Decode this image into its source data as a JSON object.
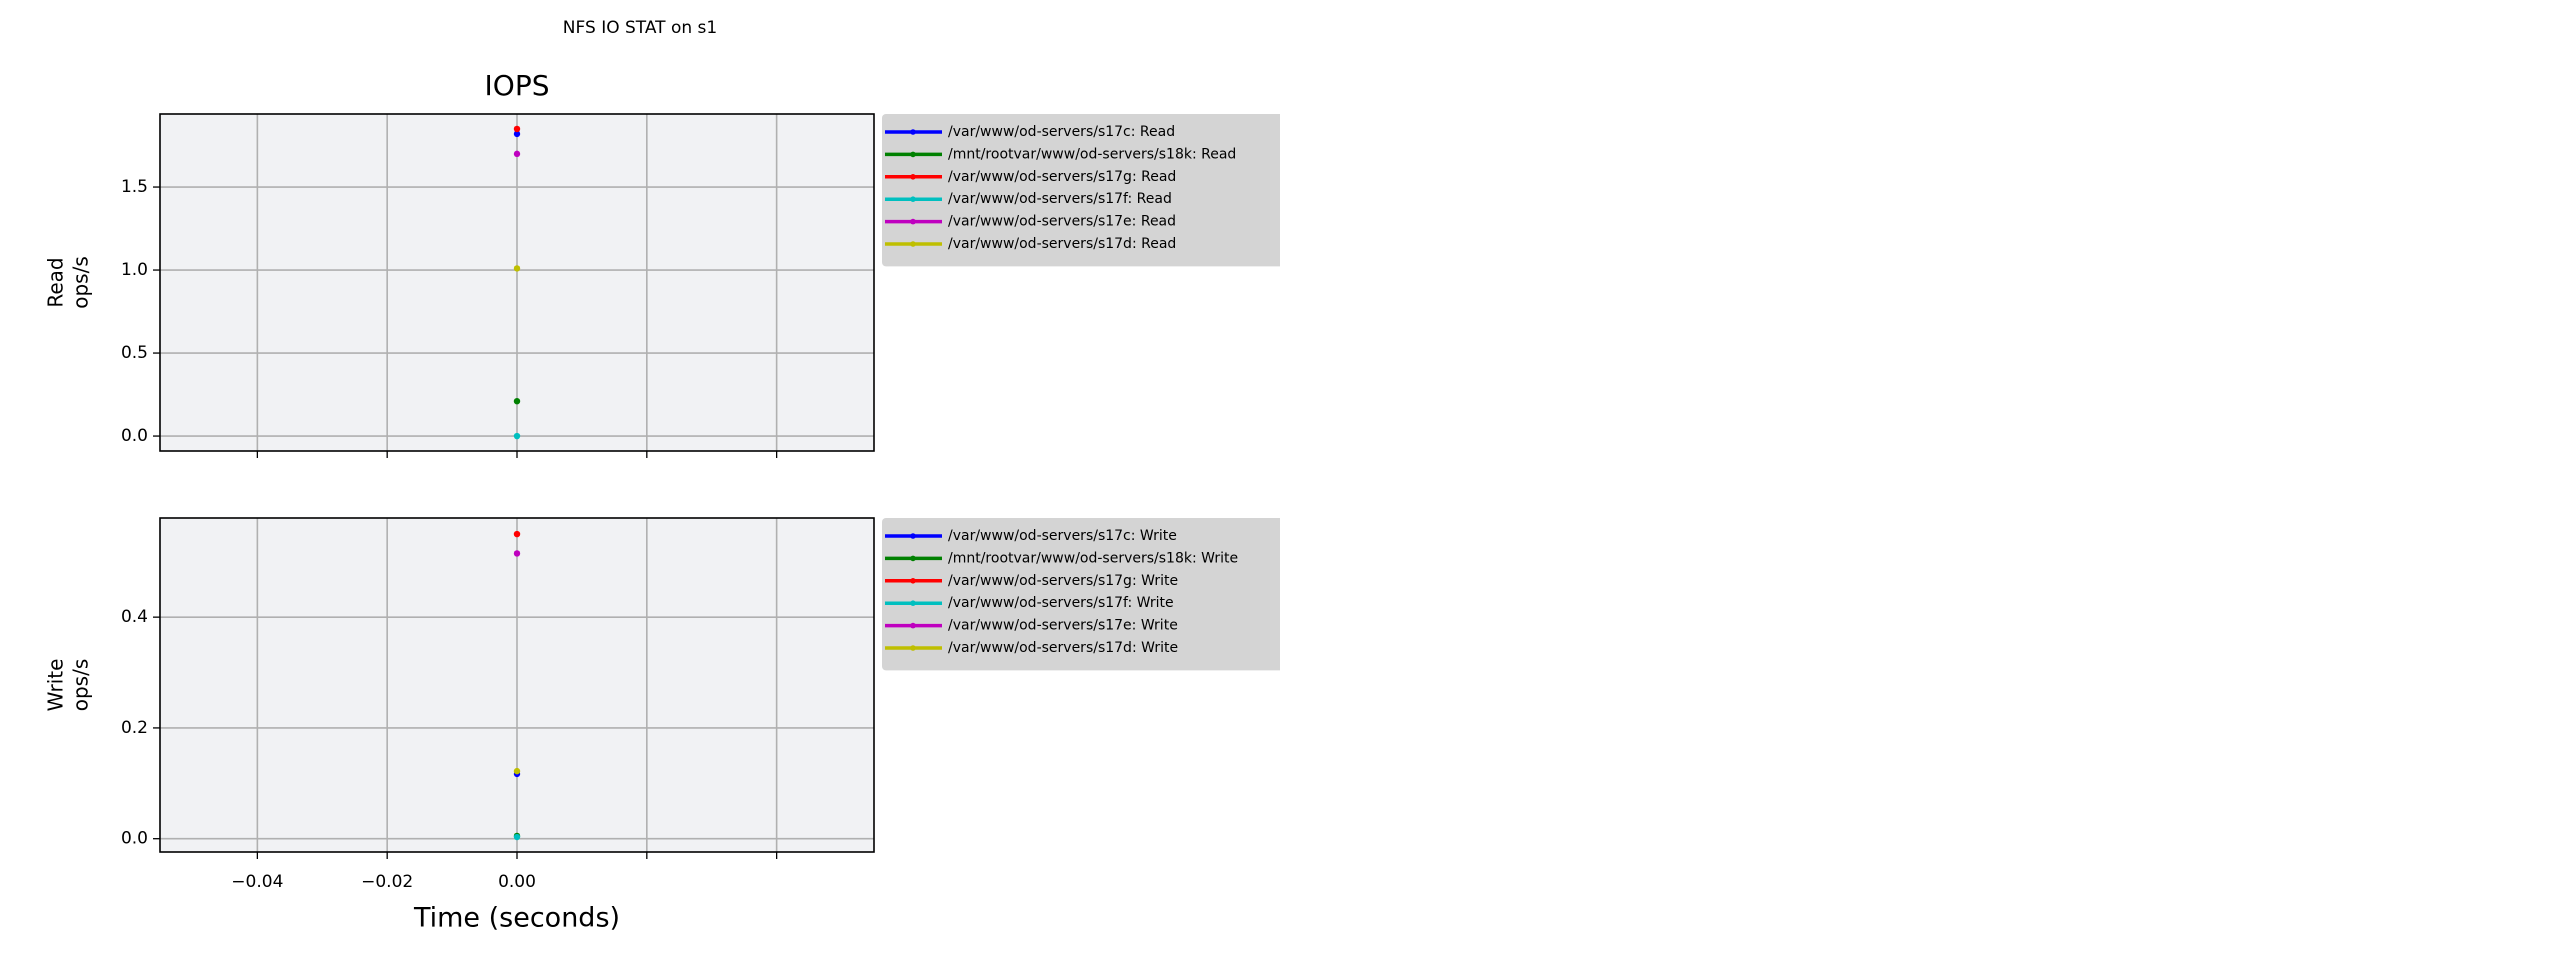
{
  "chart_data": [
    {
      "type": "line",
      "title": "NFS IO STAT on s1",
      "subtitle": "IOPS",
      "y_label": [
        "Read",
        "ops/s"
      ],
      "x": [
        0
      ],
      "series": [
        {
          "name": "/var/www/od-servers/s17c: Read",
          "color": "#0000ff",
          "values": [
            1.82
          ]
        },
        {
          "name": "/mnt/rootvar/www/od-servers/s18k: Read",
          "color": "#008000",
          "values": [
            0.21
          ]
        },
        {
          "name": "/var/www/od-servers/s17g: Read",
          "color": "#ff0000",
          "values": [
            1.85
          ]
        },
        {
          "name": "/var/www/od-servers/s17f: Read",
          "color": "#00bfbf",
          "values": [
            0.0
          ]
        },
        {
          "name": "/var/www/od-servers/s17e: Read",
          "color": "#bf00bf",
          "values": [
            1.7
          ]
        },
        {
          "name": "/var/www/od-servers/s17d: Read",
          "color": "#bfbf00",
          "values": [
            1.01
          ]
        }
      ],
      "xlim": [
        -0.055,
        0.055
      ],
      "xticks": [
        -0.04,
        -0.02,
        0,
        0.02,
        0.04
      ],
      "ylim": [
        -0.09,
        1.94
      ],
      "yticks": [
        {
          "value": 0,
          "label": "0.0"
        },
        0.5,
        {
          "value": 1,
          "label": "1.0"
        },
        1.5
      ],
      "grid": true,
      "legend": "outside right"
    },
    {
      "type": "line",
      "y_label": [
        "Write",
        "ops/s"
      ],
      "x_label": "Time (seconds)",
      "x": [
        0
      ],
      "series": [
        {
          "name": "/var/www/od-servers/s17c: Write",
          "color": "#0000ff",
          "values": [
            0.117
          ]
        },
        {
          "name": "/mnt/rootvar/www/od-servers/s18k: Write",
          "color": "#008000",
          "values": [
            0.005
          ]
        },
        {
          "name": "/var/www/od-servers/s17g: Write",
          "color": "#ff0000",
          "values": [
            0.55
          ]
        },
        {
          "name": "/var/www/od-servers/s17f: Write",
          "color": "#00bfbf",
          "values": [
            0.003
          ]
        },
        {
          "name": "/var/www/od-servers/s17e: Write",
          "color": "#bf00bf",
          "values": [
            0.515
          ]
        },
        {
          "name": "/var/www/od-servers/s17d: Write",
          "color": "#bfbf00",
          "values": [
            0.122
          ]
        }
      ],
      "xlim": [
        -0.055,
        0.055
      ],
      "xticks": [
        {
          "value": -0.04,
          "label": "−0.04"
        },
        {
          "value": -0.02,
          "label": "−0.02"
        },
        {
          "value": 0,
          "label": "0.00"
        },
        0.02,
        0.04
      ],
      "ylim": [
        -0.024,
        0.579
      ],
      "yticks": [
        {
          "value": 0,
          "label": "0.0"
        },
        0.2,
        0.4
      ],
      "grid": true,
      "legend": "outside right"
    },
    {
      "type": "line",
      "title": "NFS IO STAT on s1",
      "subtitle": "IOPS",
      "y_label": [
        "Read",
        "ops/s"
      ],
      "x": [
        0
      ],
      "series": [
        {
          "name": "/var/www/od-servers/s17c: Read",
          "color": "#0000ff",
          "values": [
            1.82
          ]
        },
        {
          "name": "/mnt/rootvar/www/od-servers/s18k: Read",
          "color": "#008000",
          "values": [
            0.21
          ]
        },
        {
          "name": "/var/www/od-servers/s17g: Read",
          "color": "#ff0000",
          "values": [
            1.85
          ]
        },
        {
          "name": "/var/www/od-servers/s17f: Read",
          "color": "#00bfbf",
          "values": [
            0.0
          ]
        },
        {
          "name": "/var/www/od-servers/s17e: Read",
          "color": "#bf00bf",
          "values": [
            1.7
          ]
        },
        {
          "name": "/var/www/od-servers/s17d: Read",
          "color": "#bfbf00",
          "values": [
            1.01
          ]
        }
      ],
      "xlim": [
        -0.055,
        0.055
      ],
      "xticks": [
        -0.04,
        -0.02,
        0,
        0.02,
        0.04
      ],
      "ylim": [
        -0.09,
        1.94
      ],
      "yticks": [
        {
          "value": 0,
          "label": "0.0"
        },
        0.5,
        {
          "value": 1,
          "label": "1.0"
        },
        1.5
      ],
      "grid": true,
      "legend": "outside right"
    },
    {
      "type": "line",
      "y_label": [
        "Write",
        "ops/s"
      ],
      "x_label": "Time (seconds)",
      "x": [
        0
      ],
      "series": [
        {
          "name": "/var/www/od-servers/s17c: Write",
          "color": "#0000ff",
          "values": [
            0.117
          ]
        },
        {
          "name": "/mnt/rootvar/www/od-servers/s18k: Write",
          "color": "#008000",
          "values": [
            0.005
          ]
        },
        {
          "name": "/var/www/od-servers/s17g: Write",
          "color": "#ff0000",
          "values": [
            0.55
          ]
        },
        {
          "name": "/var/www/od-servers/s17f: Write",
          "color": "#00bfbf",
          "values": [
            0.003
          ]
        },
        {
          "name": "/var/www/od-servers/s17e: Write",
          "color": "#bf00bf",
          "values": [
            0.515
          ]
        },
        {
          "name": "/var/www/od-servers/s17d: Write",
          "color": "#bfbf00",
          "values": [
            0.122
          ]
        }
      ],
      "xlim": [
        -0.055,
        0.055
      ],
      "xticks": [
        {
          "value": -0.04,
          "label": "−0.04"
        },
        {
          "value": -0.02,
          "label": "−0.02"
        },
        {
          "value": 0,
          "label": "0.00"
        },
        0.02,
        0.04
      ],
      "ylim": [
        -0.024,
        0.579
      ],
      "yticks": [
        {
          "value": 0,
          "label": "0.0"
        },
        0.2,
        0.4
      ],
      "grid": true,
      "legend": "outside right"
    }
  ]
}
